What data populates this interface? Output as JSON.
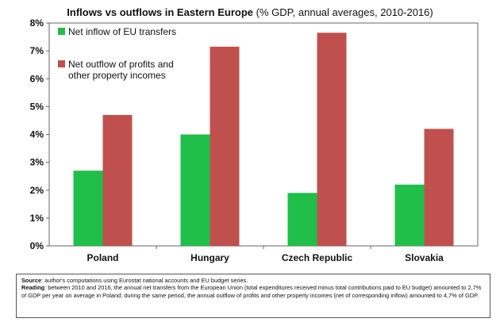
{
  "chart_data": {
    "type": "bar",
    "title": "Inflows vs outflows in Eastern Europe",
    "subtitle": "(% GDP, annual averages, 2010-2016)",
    "xlabel": "",
    "ylabel": "",
    "categories": [
      "Poland",
      "Hungary",
      "Czech Republic",
      "Slovakia"
    ],
    "series": [
      {
        "name": "Net inflow of EU transfers",
        "color": "#1fbf4a",
        "values": [
          2.7,
          4.0,
          1.9,
          2.2
        ]
      },
      {
        "name": "Net outflow of profits and other property incomes",
        "color": "#c0504d",
        "values": [
          4.7,
          7.15,
          7.65,
          4.2
        ]
      }
    ],
    "ylim": [
      0,
      8
    ],
    "yticks": [
      "0%",
      "1%",
      "2%",
      "3%",
      "4%",
      "5%",
      "6%",
      "7%",
      "8%"
    ],
    "grid": false,
    "legend": "top-left"
  },
  "notes": {
    "source_label": "Source",
    "source_text": ": author's computations using Eurostat national accounts and EU budget series.",
    "reading_label": "Reading",
    "reading_text": ": between 2010 and 2016, the annual net transfers from the European Union (total expenditures received minus total contributions paid to EU budget) amounted to 2,7% of GDP per year on average in Poland; during the same period, the annual outflow of profits and other property incomes (net of corresponding inflow) amounted to 4,7% of GDP."
  }
}
